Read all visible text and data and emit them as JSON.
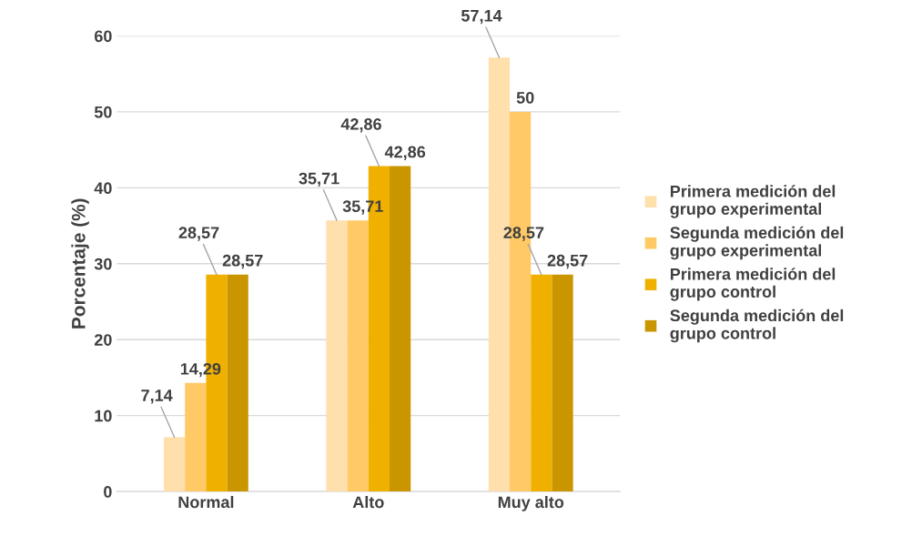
{
  "chart_data": {
    "type": "bar",
    "ylabel": "Porcentaje (%)",
    "categories": [
      "Normal",
      "Alto",
      "Muy alto"
    ],
    "series": [
      {
        "name": "Primera medición del grupo experimental",
        "color": "#ffdfab",
        "values": [
          7.14,
          35.71,
          57.14
        ],
        "value_labels": [
          "7,14",
          "35,71",
          "57,14"
        ]
      },
      {
        "name": "Segunda medición del grupo experimental",
        "color": "#ffc966",
        "values": [
          14.29,
          35.71,
          50
        ],
        "value_labels": [
          "14,29",
          "35,71",
          "50"
        ]
      },
      {
        "name": "Primera medición del grupo control",
        "color": "#f0b000",
        "values": [
          28.57,
          42.86,
          28.57
        ],
        "value_labels": [
          "28,57",
          "42,86",
          "28,57"
        ]
      },
      {
        "name": "Segunda medición del grupo control",
        "color": "#c99600",
        "values": [
          28.57,
          42.86,
          28.57
        ],
        "value_labels": [
          "28,57",
          "42,86",
          "28,57"
        ]
      }
    ],
    "ylim": [
      0,
      60
    ],
    "yticks": [
      0,
      10,
      20,
      30,
      40,
      50,
      60
    ],
    "grid": "y",
    "legend": "right"
  }
}
